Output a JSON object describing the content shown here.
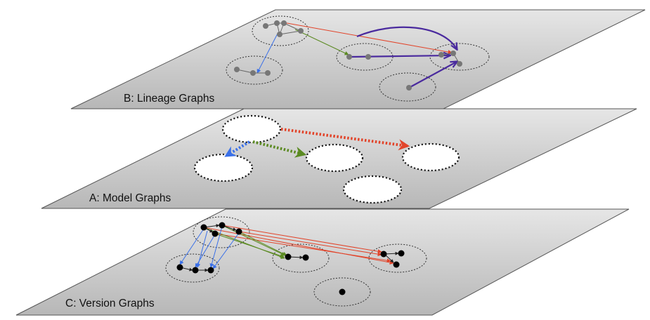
{
  "diagram": {
    "layers": [
      {
        "id": "B",
        "label": "B: Lineage Graphs"
      },
      {
        "id": "A",
        "label": "A: Model Graphs"
      },
      {
        "id": "C",
        "label": "C: Version Graphs"
      }
    ],
    "colors": {
      "plane_top": "#e6e6e6",
      "plane_bottom": "#b7b7b7",
      "plane_edge": "#444444",
      "lineage_node": "#777777",
      "version_node": "#000000",
      "model_node_fill": "#ffffff",
      "edge_red": "#e2442a",
      "edge_green": "#5b8a22",
      "edge_blue": "#3a70e8",
      "edge_purple": "#4a2a9e",
      "edge_black": "#222222"
    }
  }
}
